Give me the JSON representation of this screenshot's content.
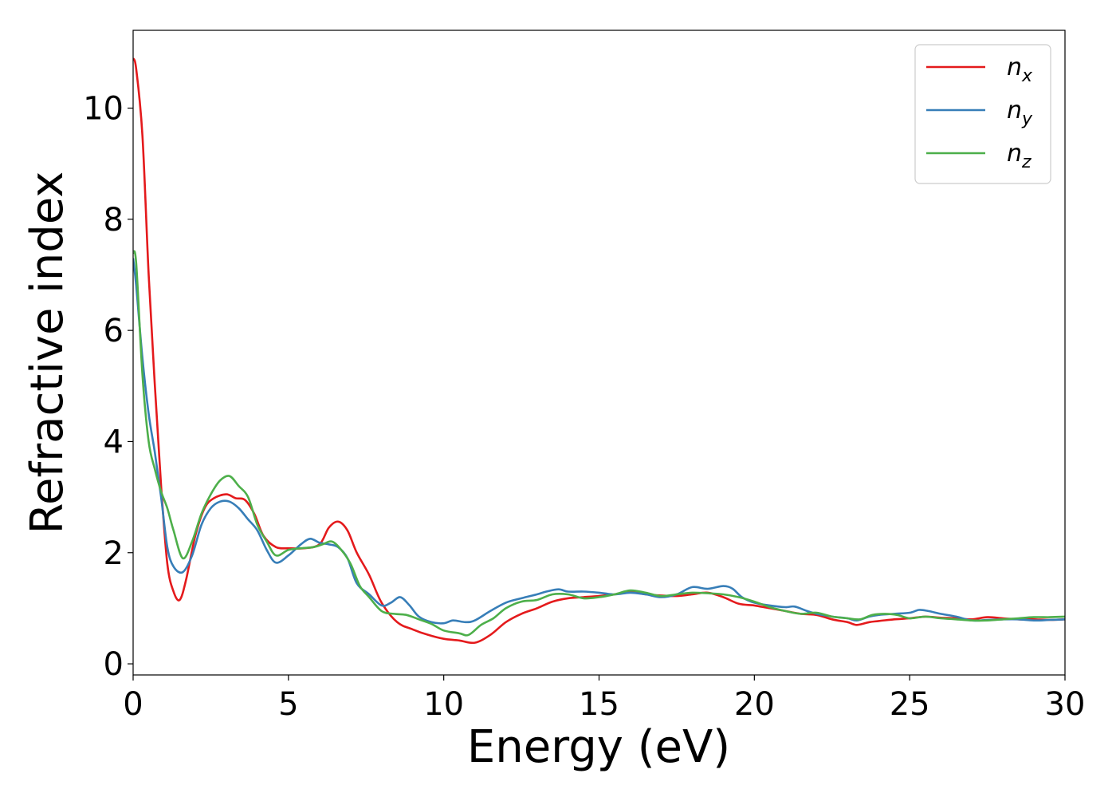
{
  "chart_data": {
    "type": "line",
    "xlabel": "Energy (eV)",
    "ylabel": "Refractive index",
    "xlim": [
      0,
      30
    ],
    "ylim": [
      -0.2,
      11.4
    ],
    "xticks": [
      0,
      5,
      10,
      15,
      20,
      25,
      30
    ],
    "yticks": [
      0,
      2,
      4,
      6,
      8,
      10
    ],
    "xtick_labels": [
      "0",
      "5",
      "10",
      "15",
      "20",
      "25",
      "30"
    ],
    "ytick_labels": [
      "0",
      "2",
      "4",
      "6",
      "8",
      "10"
    ],
    "grid": false,
    "legend_position": "top-right",
    "series": [
      {
        "name": "n",
        "subscript": "x",
        "color": "#e41a1c",
        "points": [
          [
            0,
            10.9
          ],
          [
            0.1,
            10.7
          ],
          [
            0.3,
            9.5
          ],
          [
            0.5,
            7.0
          ],
          [
            0.7,
            5.0
          ],
          [
            0.9,
            3.2
          ],
          [
            1.1,
            1.8
          ],
          [
            1.3,
            1.3
          ],
          [
            1.5,
            1.15
          ],
          [
            1.7,
            1.5
          ],
          [
            2.0,
            2.3
          ],
          [
            2.3,
            2.8
          ],
          [
            2.6,
            2.98
          ],
          [
            3.0,
            3.05
          ],
          [
            3.3,
            2.98
          ],
          [
            3.6,
            2.95
          ],
          [
            3.9,
            2.7
          ],
          [
            4.2,
            2.3
          ],
          [
            4.6,
            2.1
          ],
          [
            5.0,
            2.08
          ],
          [
            5.5,
            2.08
          ],
          [
            6.0,
            2.15
          ],
          [
            6.3,
            2.45
          ],
          [
            6.6,
            2.56
          ],
          [
            6.9,
            2.4
          ],
          [
            7.2,
            2.0
          ],
          [
            7.6,
            1.6
          ],
          [
            8.0,
            1.1
          ],
          [
            8.5,
            0.75
          ],
          [
            9.0,
            0.62
          ],
          [
            9.5,
            0.52
          ],
          [
            10.0,
            0.45
          ],
          [
            10.5,
            0.42
          ],
          [
            11.0,
            0.38
          ],
          [
            11.5,
            0.52
          ],
          [
            12.0,
            0.75
          ],
          [
            12.5,
            0.9
          ],
          [
            13.0,
            1.0
          ],
          [
            13.5,
            1.12
          ],
          [
            14.0,
            1.18
          ],
          [
            14.5,
            1.2
          ],
          [
            15.0,
            1.22
          ],
          [
            15.5,
            1.25
          ],
          [
            16.0,
            1.3
          ],
          [
            16.5,
            1.25
          ],
          [
            17.0,
            1.23
          ],
          [
            17.5,
            1.22
          ],
          [
            18.0,
            1.25
          ],
          [
            18.5,
            1.28
          ],
          [
            19.0,
            1.2
          ],
          [
            19.5,
            1.08
          ],
          [
            20.0,
            1.05
          ],
          [
            20.5,
            1.0
          ],
          [
            21.0,
            0.95
          ],
          [
            21.5,
            0.9
          ],
          [
            22.0,
            0.88
          ],
          [
            22.5,
            0.8
          ],
          [
            23.0,
            0.75
          ],
          [
            23.3,
            0.7
          ],
          [
            23.7,
            0.75
          ],
          [
            24.0,
            0.77
          ],
          [
            24.5,
            0.8
          ],
          [
            25.0,
            0.82
          ],
          [
            25.5,
            0.85
          ],
          [
            26.0,
            0.83
          ],
          [
            26.5,
            0.82
          ],
          [
            27.0,
            0.8
          ],
          [
            27.5,
            0.84
          ],
          [
            28.0,
            0.82
          ],
          [
            28.5,
            0.8
          ],
          [
            29.0,
            0.8
          ],
          [
            29.5,
            0.79
          ],
          [
            30.0,
            0.8
          ]
        ]
      },
      {
        "name": "n",
        "subscript": "y",
        "color": "#377eb8",
        "points": [
          [
            0,
            7.3
          ],
          [
            0.1,
            6.8
          ],
          [
            0.3,
            5.5
          ],
          [
            0.5,
            4.5
          ],
          [
            0.7,
            3.8
          ],
          [
            0.9,
            3.0
          ],
          [
            1.1,
            2.1
          ],
          [
            1.3,
            1.75
          ],
          [
            1.6,
            1.65
          ],
          [
            1.9,
            1.95
          ],
          [
            2.2,
            2.5
          ],
          [
            2.5,
            2.8
          ],
          [
            2.8,
            2.92
          ],
          [
            3.1,
            2.92
          ],
          [
            3.4,
            2.8
          ],
          [
            3.7,
            2.6
          ],
          [
            4.0,
            2.4
          ],
          [
            4.3,
            2.05
          ],
          [
            4.6,
            1.82
          ],
          [
            5.0,
            1.95
          ],
          [
            5.4,
            2.15
          ],
          [
            5.7,
            2.25
          ],
          [
            6.0,
            2.18
          ],
          [
            6.3,
            2.15
          ],
          [
            6.6,
            2.1
          ],
          [
            6.9,
            1.9
          ],
          [
            7.2,
            1.45
          ],
          [
            7.6,
            1.25
          ],
          [
            8.0,
            1.05
          ],
          [
            8.3,
            1.1
          ],
          [
            8.6,
            1.2
          ],
          [
            8.9,
            1.05
          ],
          [
            9.2,
            0.85
          ],
          [
            9.6,
            0.75
          ],
          [
            10.0,
            0.73
          ],
          [
            10.3,
            0.78
          ],
          [
            10.7,
            0.75
          ],
          [
            11.0,
            0.78
          ],
          [
            11.5,
            0.95
          ],
          [
            12.0,
            1.1
          ],
          [
            12.5,
            1.18
          ],
          [
            13.0,
            1.25
          ],
          [
            13.3,
            1.3
          ],
          [
            13.7,
            1.34
          ],
          [
            14.0,
            1.3
          ],
          [
            14.5,
            1.3
          ],
          [
            15.0,
            1.28
          ],
          [
            15.5,
            1.25
          ],
          [
            16.0,
            1.28
          ],
          [
            16.5,
            1.25
          ],
          [
            17.0,
            1.2
          ],
          [
            17.5,
            1.25
          ],
          [
            18.0,
            1.38
          ],
          [
            18.5,
            1.35
          ],
          [
            19.0,
            1.4
          ],
          [
            19.3,
            1.35
          ],
          [
            19.6,
            1.2
          ],
          [
            20.0,
            1.1
          ],
          [
            20.5,
            1.05
          ],
          [
            21.0,
            1.02
          ],
          [
            21.3,
            1.03
          ],
          [
            21.7,
            0.95
          ],
          [
            22.0,
            0.9
          ],
          [
            22.5,
            0.85
          ],
          [
            23.0,
            0.82
          ],
          [
            23.3,
            0.78
          ],
          [
            23.7,
            0.85
          ],
          [
            24.0,
            0.88
          ],
          [
            24.5,
            0.9
          ],
          [
            25.0,
            0.92
          ],
          [
            25.3,
            0.97
          ],
          [
            25.6,
            0.95
          ],
          [
            26.0,
            0.9
          ],
          [
            26.5,
            0.85
          ],
          [
            27.0,
            0.78
          ],
          [
            27.5,
            0.79
          ],
          [
            28.0,
            0.8
          ],
          [
            28.5,
            0.8
          ],
          [
            29.0,
            0.78
          ],
          [
            29.5,
            0.79
          ],
          [
            30.0,
            0.8
          ]
        ]
      },
      {
        "name": "n",
        "subscript": "z",
        "color": "#4daf4a",
        "points": [
          [
            0,
            7.4
          ],
          [
            0.1,
            7.2
          ],
          [
            0.3,
            5.2
          ],
          [
            0.5,
            4.0
          ],
          [
            0.7,
            3.5
          ],
          [
            0.9,
            3.1
          ],
          [
            1.1,
            2.8
          ],
          [
            1.3,
            2.4
          ],
          [
            1.6,
            1.9
          ],
          [
            1.9,
            2.2
          ],
          [
            2.2,
            2.7
          ],
          [
            2.5,
            3.05
          ],
          [
            2.8,
            3.3
          ],
          [
            3.1,
            3.38
          ],
          [
            3.4,
            3.2
          ],
          [
            3.7,
            3.0
          ],
          [
            4.0,
            2.5
          ],
          [
            4.3,
            2.2
          ],
          [
            4.6,
            1.95
          ],
          [
            5.0,
            2.05
          ],
          [
            5.4,
            2.08
          ],
          [
            5.8,
            2.1
          ],
          [
            6.1,
            2.15
          ],
          [
            6.4,
            2.2
          ],
          [
            6.7,
            2.05
          ],
          [
            7.0,
            1.8
          ],
          [
            7.3,
            1.4
          ],
          [
            7.6,
            1.2
          ],
          [
            8.0,
            0.95
          ],
          [
            8.4,
            0.9
          ],
          [
            8.8,
            0.88
          ],
          [
            9.2,
            0.8
          ],
          [
            9.6,
            0.72
          ],
          [
            10.0,
            0.6
          ],
          [
            10.5,
            0.55
          ],
          [
            10.8,
            0.52
          ],
          [
            11.2,
            0.7
          ],
          [
            11.6,
            0.82
          ],
          [
            12.0,
            1.0
          ],
          [
            12.5,
            1.12
          ],
          [
            13.0,
            1.15
          ],
          [
            13.5,
            1.25
          ],
          [
            14.0,
            1.25
          ],
          [
            14.5,
            1.18
          ],
          [
            15.0,
            1.2
          ],
          [
            15.5,
            1.25
          ],
          [
            16.0,
            1.32
          ],
          [
            16.5,
            1.28
          ],
          [
            17.0,
            1.22
          ],
          [
            17.5,
            1.25
          ],
          [
            18.0,
            1.28
          ],
          [
            18.5,
            1.27
          ],
          [
            19.0,
            1.25
          ],
          [
            19.5,
            1.2
          ],
          [
            20.0,
            1.12
          ],
          [
            20.5,
            1.02
          ],
          [
            21.0,
            0.95
          ],
          [
            21.5,
            0.9
          ],
          [
            22.0,
            0.92
          ],
          [
            22.5,
            0.85
          ],
          [
            23.0,
            0.82
          ],
          [
            23.4,
            0.8
          ],
          [
            23.8,
            0.88
          ],
          [
            24.2,
            0.9
          ],
          [
            24.6,
            0.88
          ],
          [
            25.0,
            0.82
          ],
          [
            25.5,
            0.85
          ],
          [
            26.0,
            0.82
          ],
          [
            26.5,
            0.8
          ],
          [
            27.0,
            0.78
          ],
          [
            27.5,
            0.78
          ],
          [
            28.0,
            0.8
          ],
          [
            28.5,
            0.82
          ],
          [
            29.0,
            0.84
          ],
          [
            29.5,
            0.84
          ],
          [
            30.0,
            0.85
          ]
        ]
      }
    ]
  }
}
